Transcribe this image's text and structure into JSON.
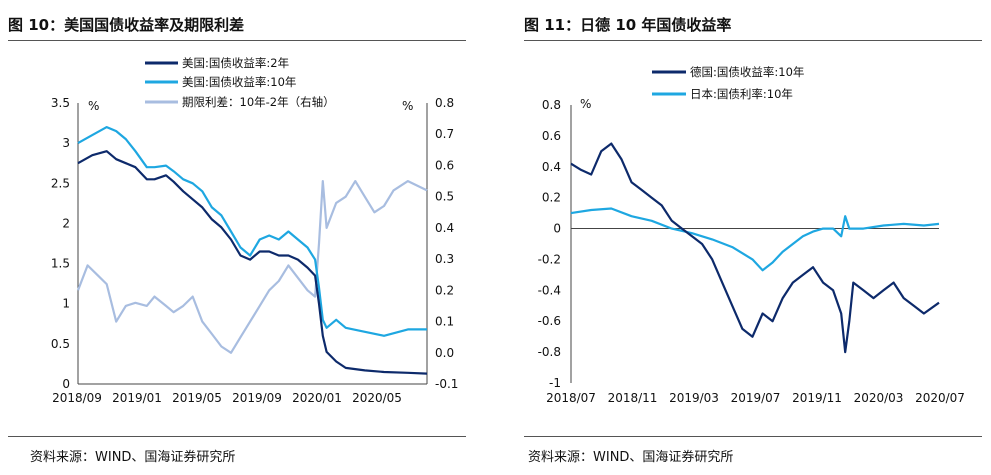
{
  "left": {
    "title": "图 10：美国国债收益率及期限利差",
    "source": "资料来源：WIND、国海证券研究所",
    "chart_data": {
      "type": "line",
      "left_unit": "%",
      "right_unit": "%",
      "ylim_left": [
        0,
        3.5
      ],
      "ylim_right": [
        -0.1,
        0.8
      ],
      "yticks_left": [
        "3.5",
        "3",
        "2.5",
        "2",
        "1.5",
        "1",
        "0.5",
        "0"
      ],
      "yticks_right": [
        "0.8",
        "0.7",
        "0.6",
        "0.5",
        "0.4",
        "0.3",
        "0.2",
        "0.1",
        "0.0",
        "-0.1"
      ],
      "xticks": [
        "2018/09",
        "2019/01",
        "2019/05",
        "2019/09",
        "2020/01",
        "2020/05"
      ],
      "series": [
        {
          "name": "美国:国债收益率:2年",
          "color": "#0d2a6b",
          "axis": "left",
          "points": [
            [
              0,
              2.75
            ],
            [
              15,
              2.85
            ],
            [
              30,
              2.9
            ],
            [
              40,
              2.8
            ],
            [
              50,
              2.75
            ],
            [
              60,
              2.7
            ],
            [
              72,
              2.55
            ],
            [
              80,
              2.55
            ],
            [
              92,
              2.6
            ],
            [
              100,
              2.52
            ],
            [
              110,
              2.4
            ],
            [
              120,
              2.3
            ],
            [
              130,
              2.2
            ],
            [
              140,
              2.05
            ],
            [
              150,
              1.95
            ],
            [
              160,
              1.8
            ],
            [
              170,
              1.6
            ],
            [
              180,
              1.55
            ],
            [
              190,
              1.65
            ],
            [
              200,
              1.65
            ],
            [
              210,
              1.6
            ],
            [
              220,
              1.6
            ],
            [
              230,
              1.55
            ],
            [
              240,
              1.45
            ],
            [
              248,
              1.35
            ],
            [
              252,
              1.0
            ],
            [
              256,
              0.6
            ],
            [
              260,
              0.4
            ],
            [
              270,
              0.28
            ],
            [
              280,
              0.2
            ],
            [
              300,
              0.17
            ],
            [
              320,
              0.15
            ],
            [
              345,
              0.14
            ],
            [
              365,
              0.13
            ]
          ]
        },
        {
          "name": "美国:国债收益率:10年",
          "color": "#1ea7e1",
          "axis": "left",
          "points": [
            [
              0,
              3.0
            ],
            [
              15,
              3.1
            ],
            [
              30,
              3.2
            ],
            [
              40,
              3.15
            ],
            [
              50,
              3.05
            ],
            [
              60,
              2.9
            ],
            [
              72,
              2.7
            ],
            [
              80,
              2.7
            ],
            [
              92,
              2.72
            ],
            [
              100,
              2.65
            ],
            [
              110,
              2.55
            ],
            [
              120,
              2.5
            ],
            [
              130,
              2.4
            ],
            [
              140,
              2.2
            ],
            [
              150,
              2.1
            ],
            [
              160,
              1.9
            ],
            [
              170,
              1.7
            ],
            [
              180,
              1.6
            ],
            [
              190,
              1.8
            ],
            [
              200,
              1.85
            ],
            [
              210,
              1.8
            ],
            [
              220,
              1.9
            ],
            [
              230,
              1.8
            ],
            [
              240,
              1.7
            ],
            [
              248,
              1.55
            ],
            [
              252,
              1.2
            ],
            [
              256,
              0.8
            ],
            [
              260,
              0.7
            ],
            [
              270,
              0.8
            ],
            [
              280,
              0.7
            ],
            [
              300,
              0.65
            ],
            [
              320,
              0.6
            ],
            [
              345,
              0.68
            ],
            [
              365,
              0.68
            ]
          ]
        },
        {
          "name": "期限利差：10年-2年（右轴）",
          "color": "#a8bde0",
          "axis": "right",
          "points": [
            [
              0,
              0.2
            ],
            [
              10,
              0.28
            ],
            [
              20,
              0.25
            ],
            [
              30,
              0.22
            ],
            [
              40,
              0.1
            ],
            [
              50,
              0.15
            ],
            [
              60,
              0.16
            ],
            [
              72,
              0.15
            ],
            [
              80,
              0.18
            ],
            [
              92,
              0.15
            ],
            [
              100,
              0.13
            ],
            [
              110,
              0.15
            ],
            [
              120,
              0.18
            ],
            [
              130,
              0.1
            ],
            [
              140,
              0.06
            ],
            [
              150,
              0.02
            ],
            [
              160,
              0.0
            ],
            [
              170,
              0.05
            ],
            [
              180,
              0.1
            ],
            [
              190,
              0.15
            ],
            [
              200,
              0.2
            ],
            [
              210,
              0.23
            ],
            [
              220,
              0.28
            ],
            [
              230,
              0.24
            ],
            [
              240,
              0.2
            ],
            [
              248,
              0.18
            ],
            [
              252,
              0.35
            ],
            [
              256,
              0.55
            ],
            [
              260,
              0.4
            ],
            [
              270,
              0.48
            ],
            [
              280,
              0.5
            ],
            [
              290,
              0.55
            ],
            [
              300,
              0.5
            ],
            [
              310,
              0.45
            ],
            [
              320,
              0.47
            ],
            [
              330,
              0.52
            ],
            [
              345,
              0.55
            ],
            [
              365,
              0.52
            ]
          ]
        }
      ]
    }
  },
  "right": {
    "title": "图 11：日德 10 年国债收益率",
    "source": "资料来源：WIND、国海证券研究所",
    "chart_data": {
      "type": "line",
      "left_unit": "%",
      "ylim": [
        -1,
        0.8
      ],
      "yticks": [
        "0.8",
        "0.6",
        "0.4",
        "0.2",
        "0",
        "-0.2",
        "-0.4",
        "-0.6",
        "-0.8",
        "-1"
      ],
      "xticks": [
        "2018/07",
        "2018/11",
        "2019/03",
        "2019/07",
        "2019/11",
        "2020/03",
        "2020/07"
      ],
      "series": [
        {
          "name": "德国:国债收益率:10年",
          "color": "#0d2a6b",
          "points": [
            [
              0,
              0.42
            ],
            [
              10,
              0.38
            ],
            [
              20,
              0.35
            ],
            [
              30,
              0.5
            ],
            [
              40,
              0.55
            ],
            [
              50,
              0.45
            ],
            [
              60,
              0.3
            ],
            [
              70,
              0.25
            ],
            [
              80,
              0.2
            ],
            [
              90,
              0.15
            ],
            [
              100,
              0.05
            ],
            [
              110,
              0.0
            ],
            [
              120,
              -0.05
            ],
            [
              130,
              -0.1
            ],
            [
              140,
              -0.2
            ],
            [
              150,
              -0.35
            ],
            [
              160,
              -0.5
            ],
            [
              170,
              -0.65
            ],
            [
              180,
              -0.7
            ],
            [
              190,
              -0.55
            ],
            [
              200,
              -0.6
            ],
            [
              210,
              -0.45
            ],
            [
              220,
              -0.35
            ],
            [
              230,
              -0.3
            ],
            [
              240,
              -0.25
            ],
            [
              250,
              -0.35
            ],
            [
              260,
              -0.4
            ],
            [
              268,
              -0.55
            ],
            [
              272,
              -0.8
            ],
            [
              276,
              -0.6
            ],
            [
              280,
              -0.35
            ],
            [
              290,
              -0.4
            ],
            [
              300,
              -0.45
            ],
            [
              310,
              -0.4
            ],
            [
              320,
              -0.35
            ],
            [
              330,
              -0.45
            ],
            [
              340,
              -0.5
            ],
            [
              350,
              -0.55
            ],
            [
              365,
              -0.48
            ]
          ]
        },
        {
          "name": "日本:国债利率:10年",
          "color": "#1ea7e1",
          "points": [
            [
              0,
              0.1
            ],
            [
              20,
              0.12
            ],
            [
              40,
              0.13
            ],
            [
              60,
              0.08
            ],
            [
              80,
              0.05
            ],
            [
              100,
              0.0
            ],
            [
              120,
              -0.03
            ],
            [
              140,
              -0.07
            ],
            [
              160,
              -0.12
            ],
            [
              180,
              -0.2
            ],
            [
              190,
              -0.27
            ],
            [
              200,
              -0.22
            ],
            [
              210,
              -0.15
            ],
            [
              220,
              -0.1
            ],
            [
              230,
              -0.05
            ],
            [
              240,
              -0.02
            ],
            [
              250,
              0.0
            ],
            [
              260,
              0.0
            ],
            [
              268,
              -0.05
            ],
            [
              272,
              0.08
            ],
            [
              276,
              0.0
            ],
            [
              290,
              0.0
            ],
            [
              310,
              0.02
            ],
            [
              330,
              0.03
            ],
            [
              350,
              0.02
            ],
            [
              365,
              0.03
            ]
          ]
        }
      ]
    }
  }
}
